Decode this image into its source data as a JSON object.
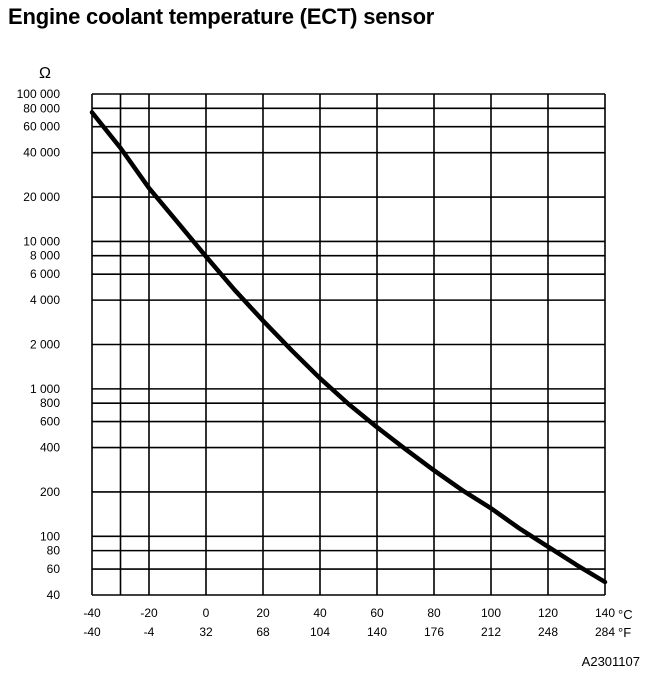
{
  "title": "Engine coolant temperature (ECT) sensor",
  "figure_id": "A2301107",
  "chart_data": {
    "type": "line",
    "title": "Engine coolant temperature (ECT) sensor",
    "y_unit": "Ω",
    "y_scale": "log",
    "ylim": [
      40,
      100000
    ],
    "xlim_c": [
      -40,
      140
    ],
    "x_unit_c": "°C",
    "x_unit_f": "°F",
    "grid": true,
    "legend": "none",
    "y_ticks": [
      {
        "value": 100000,
        "label": "100 000"
      },
      {
        "value": 80000,
        "label": "80 000"
      },
      {
        "value": 60000,
        "label": "60 000"
      },
      {
        "value": 40000,
        "label": "40 000"
      },
      {
        "value": 20000,
        "label": "20 000"
      },
      {
        "value": 10000,
        "label": "10 000"
      },
      {
        "value": 8000,
        "label": "8 000"
      },
      {
        "value": 6000,
        "label": "6 000"
      },
      {
        "value": 4000,
        "label": "4 000"
      },
      {
        "value": 2000,
        "label": "2 000"
      },
      {
        "value": 1000,
        "label": "1 000"
      },
      {
        "value": 800,
        "label": "800"
      },
      {
        "value": 600,
        "label": "600"
      },
      {
        "value": 400,
        "label": "400"
      },
      {
        "value": 200,
        "label": "200"
      },
      {
        "value": 100,
        "label": "100"
      },
      {
        "value": 80,
        "label": "80"
      },
      {
        "value": 60,
        "label": "60"
      },
      {
        "value": 40,
        "label": "40"
      }
    ],
    "x_ticks": [
      {
        "c": -40,
        "c_label": "-40",
        "f_label": "-40"
      },
      {
        "c": -20,
        "c_label": "-20",
        "f_label": "-4"
      },
      {
        "c": 0,
        "c_label": "0",
        "f_label": "32"
      },
      {
        "c": 20,
        "c_label": "20",
        "f_label": "68"
      },
      {
        "c": 40,
        "c_label": "40",
        "f_label": "104"
      },
      {
        "c": 60,
        "c_label": "60",
        "f_label": "140"
      },
      {
        "c": 80,
        "c_label": "80",
        "f_label": "176"
      },
      {
        "c": 100,
        "c_label": "100",
        "f_label": "212"
      },
      {
        "c": 120,
        "c_label": "120",
        "f_label": "248"
      },
      {
        "c": 140,
        "c_label": "140",
        "f_label": "284"
      }
    ],
    "x_grid_extra_c": [
      -30
    ],
    "series": [
      {
        "x": [
          -40,
          -30,
          -20,
          -10,
          0,
          10,
          20,
          30,
          40,
          50,
          60,
          70,
          80,
          90,
          100,
          110,
          120,
          130,
          140
        ],
        "y": [
          75000,
          43000,
          23000,
          13500,
          7900,
          4700,
          2900,
          1830,
          1180,
          790,
          550,
          390,
          280,
          205,
          155,
          113,
          85,
          64,
          49
        ]
      }
    ]
  }
}
